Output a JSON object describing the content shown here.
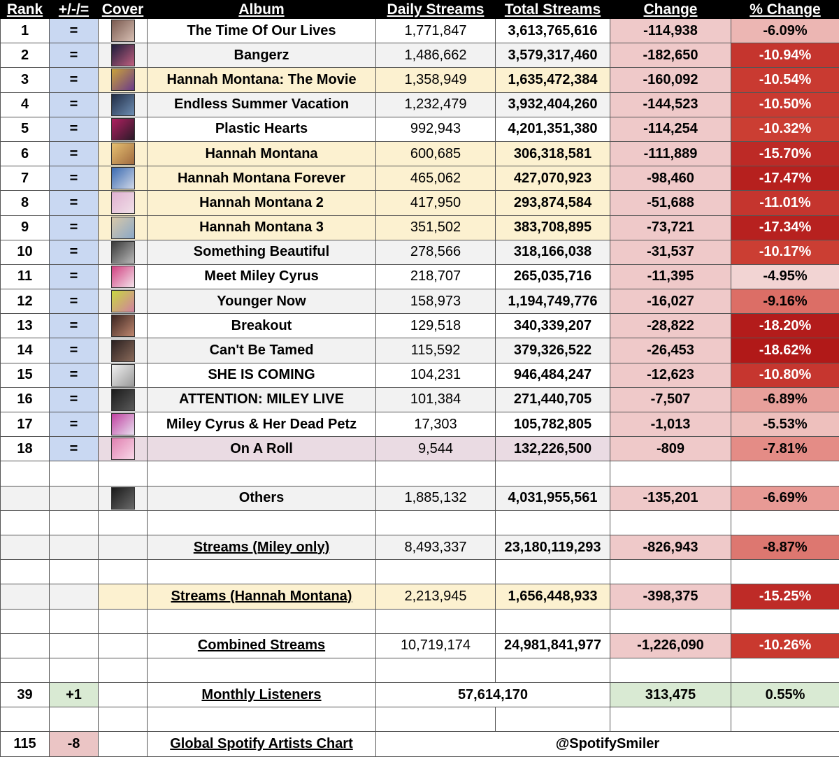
{
  "headers": {
    "rank": "Rank",
    "movement": "+/-/=",
    "cover": "Cover",
    "album": "Album",
    "daily": "Daily Streams",
    "total": "Total Streams",
    "change": "Change",
    "pct": "% Change"
  },
  "rows": [
    {
      "rank": "1",
      "mv": "=",
      "album": "The Time Of Our Lives",
      "daily": "1,771,847",
      "total": "3,613,765,616",
      "change": "-114,938",
      "pct": "-6.09%",
      "shade": "white",
      "pct_color": "#ecb6b3",
      "pct_text": "#000000",
      "cover_colors": [
        "#7a5a50",
        "#d8c0b4"
      ],
      "cover_icon": "album-cover-icon"
    },
    {
      "rank": "2",
      "mv": "=",
      "album": "Bangerz",
      "daily": "1,486,662",
      "total": "3,579,317,460",
      "change": "-182,650",
      "pct": "-10.94%",
      "shade": "grey",
      "pct_color": "#c5352e",
      "pct_text": "#ffffff",
      "cover_colors": [
        "#1c1c3a",
        "#c06080"
      ],
      "cover_icon": "album-cover-icon"
    },
    {
      "rank": "3",
      "mv": "=",
      "album": "Hannah Montana: The Movie",
      "daily": "1,358,949",
      "total": "1,635,472,384",
      "change": "-160,092",
      "pct": "-10.54%",
      "shade": "yellow",
      "pct_color": "#c93a31",
      "pct_text": "#ffffff",
      "cover_colors": [
        "#c9a23a",
        "#6a3a8a"
      ],
      "cover_icon": "album-cover-icon"
    },
    {
      "rank": "4",
      "mv": "=",
      "album": "Endless Summer Vacation",
      "daily": "1,232,479",
      "total": "3,932,404,260",
      "change": "-144,523",
      "pct": "-10.50%",
      "shade": "grey",
      "pct_color": "#c93a31",
      "pct_text": "#ffffff",
      "cover_colors": [
        "#1f2b44",
        "#6f8fb4"
      ],
      "cover_icon": "album-cover-icon"
    },
    {
      "rank": "5",
      "mv": "=",
      "album": "Plastic Hearts",
      "daily": "992,943",
      "total": "4,201,351,380",
      "change": "-114,254",
      "pct": "-10.32%",
      "shade": "white",
      "pct_color": "#cb3e33",
      "pct_text": "#ffffff",
      "cover_colors": [
        "#b02060",
        "#2a1a28"
      ],
      "cover_icon": "album-cover-icon"
    },
    {
      "rank": "6",
      "mv": "=",
      "album": "Hannah Montana",
      "daily": "600,685",
      "total": "306,318,581",
      "change": "-111,889",
      "pct": "-15.70%",
      "shade": "yellow",
      "pct_color": "#bd2a26",
      "pct_text": "#ffffff",
      "cover_colors": [
        "#e6c070",
        "#a06a40"
      ],
      "cover_icon": "album-cover-icon"
    },
    {
      "rank": "7",
      "mv": "=",
      "album": "Hannah Montana Forever",
      "daily": "465,062",
      "total": "427,070,923",
      "change": "-98,460",
      "pct": "-17.47%",
      "shade": "yellow",
      "pct_color": "#b6201e",
      "pct_text": "#ffffff",
      "cover_colors": [
        "#3a6ab0",
        "#d0d8e8"
      ],
      "cover_icon": "album-cover-icon"
    },
    {
      "rank": "8",
      "mv": "=",
      "album": "Hannah Montana 2",
      "daily": "417,950",
      "total": "293,874,584",
      "change": "-51,688",
      "pct": "-11.01%",
      "shade": "yellow",
      "pct_color": "#c5352e",
      "pct_text": "#ffffff",
      "cover_colors": [
        "#e0b0d0",
        "#f0e0e8"
      ],
      "cover_icon": "album-cover-icon"
    },
    {
      "rank": "9",
      "mv": "=",
      "album": "Hannah Montana 3",
      "daily": "351,502",
      "total": "383,708,895",
      "change": "-73,721",
      "pct": "-17.34%",
      "shade": "yellow",
      "pct_color": "#b7211f",
      "pct_text": "#ffffff",
      "cover_colors": [
        "#d8c8a8",
        "#8aa8c8"
      ],
      "cover_icon": "album-cover-icon"
    },
    {
      "rank": "10",
      "mv": "=",
      "album": "Something Beautiful",
      "daily": "278,566",
      "total": "318,166,038",
      "change": "-31,537",
      "pct": "-10.17%",
      "shade": "grey",
      "pct_color": "#cb3e33",
      "pct_text": "#ffffff",
      "cover_colors": [
        "#3a3a3a",
        "#b8b8b8"
      ],
      "cover_icon": "album-cover-icon"
    },
    {
      "rank": "11",
      "mv": "=",
      "album": "Meet Miley Cyrus",
      "daily": "218,707",
      "total": "265,035,716",
      "change": "-11,395",
      "pct": "-4.95%",
      "shade": "white",
      "pct_color": "#f2d4d3",
      "pct_text": "#000000",
      "cover_colors": [
        "#d04080",
        "#f4e4ec"
      ],
      "cover_icon": "album-cover-icon"
    },
    {
      "rank": "12",
      "mv": "=",
      "album": "Younger Now",
      "daily": "158,973",
      "total": "1,194,749,776",
      "change": "-16,027",
      "pct": "-9.16%",
      "shade": "grey",
      "pct_color": "#dc6e66",
      "pct_text": "#000000",
      "cover_colors": [
        "#c8d840",
        "#d080a0"
      ],
      "cover_icon": "album-cover-icon"
    },
    {
      "rank": "13",
      "mv": "=",
      "album": "Breakout",
      "daily": "129,518",
      "total": "340,339,207",
      "change": "-28,822",
      "pct": "-18.20%",
      "shade": "white",
      "pct_color": "#b31c1b",
      "pct_text": "#ffffff",
      "cover_colors": [
        "#3a2420",
        "#c08870"
      ],
      "cover_icon": "album-cover-icon"
    },
    {
      "rank": "14",
      "mv": "=",
      "album": "Can't Be Tamed",
      "daily": "115,592",
      "total": "379,326,522",
      "change": "-26,453",
      "pct": "-18.62%",
      "shade": "grey",
      "pct_color": "#b11918",
      "pct_text": "#ffffff",
      "cover_colors": [
        "#2a2020",
        "#8a6a5a"
      ],
      "cover_icon": "album-cover-icon"
    },
    {
      "rank": "15",
      "mv": "=",
      "album": "SHE IS COMING",
      "daily": "104,231",
      "total": "946,484,247",
      "change": "-12,623",
      "pct": "-10.80%",
      "shade": "white",
      "pct_color": "#c6362f",
      "pct_text": "#ffffff",
      "cover_colors": [
        "#f0f0f0",
        "#9a9a9a"
      ],
      "cover_icon": "album-cover-icon"
    },
    {
      "rank": "16",
      "mv": "=",
      "album": "ATTENTION: MILEY LIVE",
      "daily": "101,384",
      "total": "271,440,705",
      "change": "-7,507",
      "pct": "-6.89%",
      "shade": "grey",
      "pct_color": "#e8a09b",
      "pct_text": "#000000",
      "cover_colors": [
        "#1a1a1a",
        "#5a5a5a"
      ],
      "cover_icon": "album-cover-icon"
    },
    {
      "rank": "17",
      "mv": "=",
      "album": "Miley Cyrus & Her Dead Petz",
      "daily": "17,303",
      "total": "105,782,805",
      "change": "-1,013",
      "pct": "-5.53%",
      "shade": "white",
      "pct_color": "#eec0bd",
      "pct_text": "#000000",
      "cover_colors": [
        "#c040a0",
        "#e8e0f0"
      ],
      "cover_icon": "album-cover-icon"
    },
    {
      "rank": "18",
      "mv": "=",
      "album": "On A Roll",
      "daily": "9,544",
      "total": "132,226,500",
      "change": "-809",
      "pct": "-7.81%",
      "shade": "pink",
      "pct_color": "#e48c86",
      "pct_text": "#000000",
      "cover_colors": [
        "#e080b0",
        "#f8d8e8"
      ],
      "cover_icon": "album-cover-icon"
    }
  ],
  "others": {
    "album": "Others",
    "daily": "1,885,132",
    "total": "4,031,955,561",
    "change": "-135,201",
    "pct": "-6.69%",
    "pct_color": "#e89a95",
    "pct_text": "#000000",
    "cover_colors": [
      "#1a1a1a",
      "#6a6a6a"
    ],
    "cover_icon": "album-cover-icon"
  },
  "miley_only": {
    "album": "Streams (Miley only)",
    "daily": "8,493,337",
    "total": "23,180,119,293",
    "change": "-826,943",
    "pct": "-8.87%",
    "pct_color": "#dd7770",
    "pct_text": "#000000"
  },
  "hannah": {
    "album": "Streams (Hannah Montana)",
    "daily": "2,213,945",
    "total": "1,656,448,933",
    "change": "-398,375",
    "pct": "-15.25%",
    "pct_color": "#be2b27",
    "pct_text": "#ffffff"
  },
  "combined": {
    "album": "Combined Streams",
    "daily": "10,719,174",
    "total": "24,981,841,977",
    "change": "-1,226,090",
    "pct": "-10.26%",
    "pct_color": "#c9392f",
    "pct_text": "#ffffff"
  },
  "monthly": {
    "rank": "39",
    "mv": "+1",
    "album": "Monthly Listeners",
    "value": "57,614,170",
    "change": "313,475",
    "pct": "0.55%"
  },
  "global": {
    "rank": "115",
    "mv": "-8",
    "album": "Global Spotify Artists Chart",
    "value": "@SpotifySmiler"
  }
}
